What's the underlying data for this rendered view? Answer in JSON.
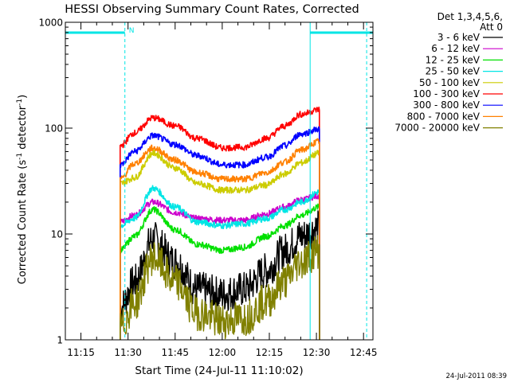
{
  "chart_data": {
    "type": "line",
    "title": "HESSI Observing Summary Count Rates, Corrected",
    "xlabel": "Start Time (24-Jul-11 11:10:02)",
    "ylabel": "Corrected Count Rate (s⁻¹ detector⁻¹)",
    "ylabel_main": "Corrected Count Rate (s",
    "ylabel_sup1": "-1",
    "ylabel_mid": " detector",
    "ylabel_sup2": "-1",
    "ylabel_end": ")",
    "y_scale": "log",
    "ylim": [
      1,
      1000
    ],
    "xlim": [
      "11:10:02",
      "12:48:00"
    ],
    "x_ticks": [
      "11:15",
      "11:30",
      "11:45",
      "12:00",
      "12:15",
      "12:30",
      "12:45"
    ],
    "y_ticks": [
      "1",
      "10",
      "100",
      "1000"
    ],
    "legend_header": [
      "Det 1,3,4,5,6,",
      "Att 0"
    ],
    "legend_placement": "outside-right",
    "timestamp": "24-Jul-2011 08:39",
    "night_label": "N",
    "x": [
      "11:27:30",
      "11:32:00",
      "11:38:00",
      "11:45:00",
      "11:52:00",
      "12:00:00",
      "12:07:00",
      "12:14:00",
      "12:20:00",
      "12:25:00",
      "12:31:00"
    ],
    "series": [
      {
        "name": "3 - 6 keV",
        "color": "#000000",
        "values": [
          2.0,
          3.5,
          9.0,
          5.5,
          3.0,
          2.7,
          3.0,
          4.5,
          7.0,
          9.5,
          11.5
        ]
      },
      {
        "name": "6 - 12 keV",
        "color": "#cc00cc",
        "values": [
          13.0,
          15.0,
          20.0,
          16.0,
          14.0,
          13.5,
          13.5,
          15.5,
          18.0,
          21.0,
          23.0
        ]
      },
      {
        "name": "12 - 25 keV",
        "color": "#00e000",
        "values": [
          7.0,
          9.5,
          17.0,
          11.0,
          8.0,
          7.0,
          7.5,
          9.5,
          12.0,
          15.0,
          18.0
        ]
      },
      {
        "name": "25 - 50 keV",
        "color": "#00e5e5",
        "values": [
          12.0,
          14.0,
          27.0,
          18.0,
          13.0,
          12.0,
          12.5,
          14.0,
          17.0,
          20.0,
          25.0
        ]
      },
      {
        "name": "50 - 100 keV",
        "color": "#cccc00",
        "values": [
          30.0,
          34.0,
          58.0,
          42.0,
          30.0,
          26.0,
          26.0,
          29.0,
          37.0,
          47.0,
          58.0
        ]
      },
      {
        "name": "100 - 300 keV",
        "color": "#ff0000",
        "values": [
          68.0,
          90.0,
          125.0,
          105.0,
          80.0,
          65.0,
          66.0,
          80.0,
          105.0,
          135.0,
          150.0
        ]
      },
      {
        "name": "300 - 800 keV",
        "color": "#0000ff",
        "values": [
          45.0,
          60.0,
          85.0,
          70.0,
          55.0,
          45.0,
          45.0,
          53.0,
          68.0,
          88.0,
          98.0
        ]
      },
      {
        "name": "800 - 7000 keV",
        "color": "#ff8000",
        "values": [
          33.0,
          46.0,
          65.0,
          50.0,
          38.0,
          33.0,
          33.0,
          38.0,
          48.0,
          62.0,
          75.0
        ]
      },
      {
        "name": "7000 - 20000 keV",
        "color": "#808000",
        "values": [
          1.3,
          2.2,
          6.0,
          3.5,
          1.8,
          1.5,
          1.6,
          2.3,
          3.6,
          5.5,
          7.0
        ]
      }
    ],
    "attenuator_bars": [
      {
        "start": "11:10:02",
        "end": "11:29:00"
      },
      {
        "start": "12:28:00",
        "end": "12:48:00"
      }
    ],
    "solid_vlines": [
      "11:10:02",
      "12:28:00"
    ],
    "dashed_vlines": [
      "11:29:00",
      "12:46:00"
    ],
    "colors": {
      "attenuator": "#00e5e5",
      "axes": "#000000"
    },
    "grid": false
  }
}
